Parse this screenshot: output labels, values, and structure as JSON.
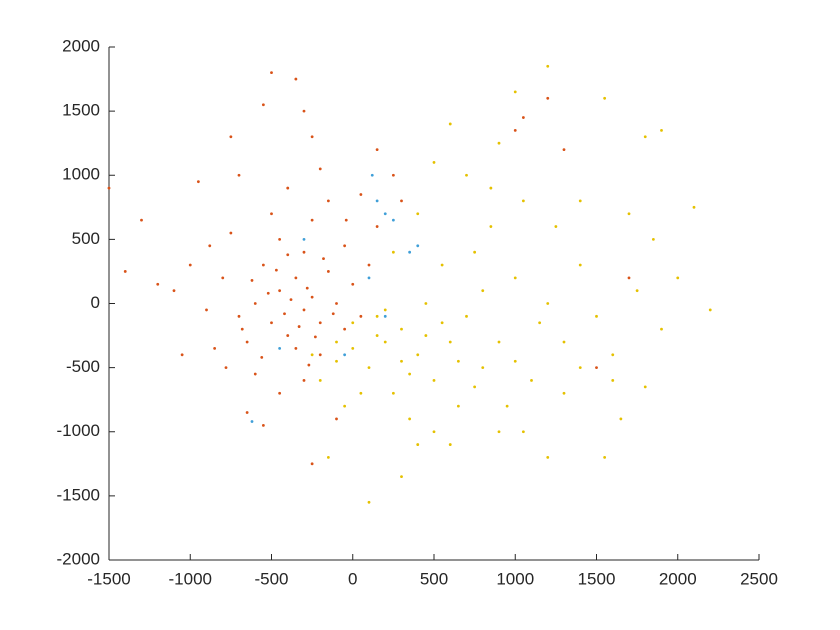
{
  "chart_data": {
    "type": "scatter",
    "xlim": [
      -1500,
      2500
    ],
    "ylim": [
      -2000,
      2000
    ],
    "xticks": [
      -1500,
      -1000,
      -500,
      0,
      500,
      1000,
      1500,
      2000,
      2500
    ],
    "yticks": [
      -2000,
      -1500,
      -1000,
      -500,
      0,
      500,
      1000,
      1500,
      2000
    ],
    "grid": false,
    "series": [
      {
        "color": "#3f9fd8",
        "x": [
          120,
          150,
          200,
          250,
          350,
          400,
          -300,
          -450,
          -620,
          100,
          -50,
          200
        ],
        "values": [
          1000,
          800,
          700,
          650,
          400,
          450,
          500,
          -350,
          -920,
          200,
          -400,
          -100
        ]
      },
      {
        "color": "#d95319",
        "x": [
          -450,
          -300,
          -500,
          -350,
          -250,
          -400,
          -600,
          -200,
          -550,
          -300,
          -700,
          -450,
          -150,
          -350,
          -800,
          -650,
          -250,
          -100,
          -500,
          -400,
          -900,
          -750,
          -200,
          -50,
          0,
          -600,
          -300,
          -1000,
          -850,
          -150,
          -450,
          -1100,
          -950,
          -1200,
          -1400,
          -700,
          -200,
          50,
          100,
          -500,
          -350,
          -750,
          -300,
          -550,
          -250,
          -1300,
          -1500,
          -1050,
          -650,
          -550,
          -250,
          -100,
          150,
          150,
          -50,
          -380,
          -420,
          -280,
          -520,
          -330,
          -470,
          -230,
          -620,
          -680,
          -180,
          -120,
          -560,
          -400,
          -270,
          -780,
          -880,
          -40,
          50,
          250,
          300,
          1000,
          1200,
          1300,
          1700,
          1500,
          1050
        ],
        "values": [
          100,
          -50,
          -150,
          200,
          50,
          -250,
          0,
          -150,
          300,
          400,
          -100,
          500,
          250,
          -350,
          200,
          -300,
          650,
          0,
          700,
          900,
          -50,
          550,
          -400,
          450,
          150,
          -550,
          -600,
          300,
          -350,
          800,
          -700,
          100,
          950,
          150,
          250,
          1000,
          1050,
          850,
          300,
          1800,
          1750,
          1300,
          1500,
          1550,
          1300,
          650,
          900,
          -400,
          -850,
          -950,
          -1250,
          -900,
          1200,
          600,
          -200,
          30,
          -80,
          120,
          80,
          -180,
          260,
          -260,
          180,
          -200,
          350,
          -80,
          -420,
          380,
          -480,
          -500,
          450,
          650,
          -100,
          1000,
          800,
          1350,
          1600,
          1200,
          200,
          -500,
          1450
        ]
      },
      {
        "color": "#e5c100",
        "x": [
          200,
          400,
          100,
          600,
          300,
          500,
          0,
          700,
          800,
          250,
          450,
          900,
          1000,
          150,
          350,
          -100,
          -200,
          550,
          1100,
          1200,
          650,
          750,
          1300,
          1400,
          850,
          950,
          1500,
          1600,
          1750,
          1850,
          2200,
          2100,
          1900,
          1800,
          1550,
          1200,
          1000,
          1650,
          1550,
          1200,
          900,
          600,
          300,
          100,
          400,
          -150,
          -50,
          50,
          500,
          1050,
          1300,
          1400,
          1600,
          1800,
          2000,
          1900,
          1700,
          1400,
          1250,
          1050,
          850,
          700,
          500,
          900,
          600,
          400,
          250,
          200,
          0,
          -100,
          -250,
          350,
          450,
          650,
          550,
          750,
          800,
          1000,
          1150,
          300,
          150
        ],
        "values": [
          -300,
          -400,
          -500,
          -300,
          -200,
          -600,
          -350,
          -100,
          -500,
          -700,
          0,
          -300,
          200,
          -100,
          -900,
          -450,
          -600,
          300,
          -600,
          0,
          -800,
          400,
          -300,
          300,
          600,
          -800,
          -100,
          -400,
          100,
          500,
          -50,
          750,
          1350,
          1300,
          1600,
          1850,
          1650,
          -900,
          -1200,
          -1200,
          -1000,
          -1100,
          -1350,
          -1550,
          -1100,
          -1200,
          -800,
          -700,
          -1000,
          -1000,
          -700,
          -500,
          -600,
          -650,
          200,
          -200,
          700,
          800,
          600,
          800,
          900,
          1000,
          1100,
          1250,
          1400,
          700,
          400,
          -50,
          -150,
          -300,
          -400,
          -550,
          -250,
          -450,
          -150,
          -650,
          100,
          -450,
          -150,
          -450,
          -250
        ]
      }
    ]
  }
}
